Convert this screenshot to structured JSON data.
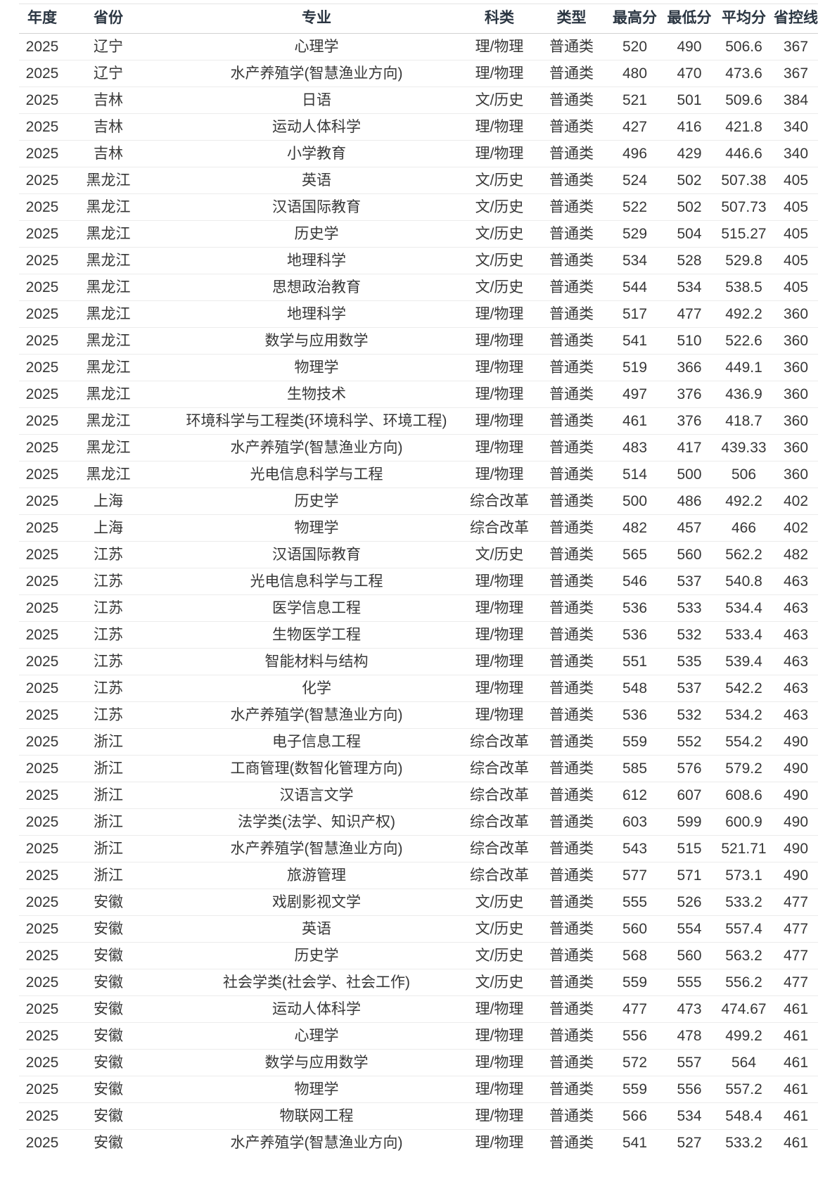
{
  "table": {
    "columns": [
      {
        "key": "year",
        "label": "年度"
      },
      {
        "key": "province",
        "label": "省份"
      },
      {
        "key": "major",
        "label": "专业"
      },
      {
        "key": "category",
        "label": "科类"
      },
      {
        "key": "type",
        "label": "类型"
      },
      {
        "key": "max",
        "label": "最高分"
      },
      {
        "key": "min",
        "label": "最低分"
      },
      {
        "key": "avg",
        "label": "平均分"
      },
      {
        "key": "line",
        "label": "省控线"
      }
    ],
    "rows": [
      [
        "2025",
        "辽宁",
        "心理学",
        "理/物理",
        "普通类",
        "520",
        "490",
        "506.6",
        "367"
      ],
      [
        "2025",
        "辽宁",
        "水产养殖学(智慧渔业方向)",
        "理/物理",
        "普通类",
        "480",
        "470",
        "473.6",
        "367"
      ],
      [
        "2025",
        "吉林",
        "日语",
        "文/历史",
        "普通类",
        "521",
        "501",
        "509.6",
        "384"
      ],
      [
        "2025",
        "吉林",
        "运动人体科学",
        "理/物理",
        "普通类",
        "427",
        "416",
        "421.8",
        "340"
      ],
      [
        "2025",
        "吉林",
        "小学教育",
        "理/物理",
        "普通类",
        "496",
        "429",
        "446.6",
        "340"
      ],
      [
        "2025",
        "黑龙江",
        "英语",
        "文/历史",
        "普通类",
        "524",
        "502",
        "507.38",
        "405"
      ],
      [
        "2025",
        "黑龙江",
        "汉语国际教育",
        "文/历史",
        "普通类",
        "522",
        "502",
        "507.73",
        "405"
      ],
      [
        "2025",
        "黑龙江",
        "历史学",
        "文/历史",
        "普通类",
        "529",
        "504",
        "515.27",
        "405"
      ],
      [
        "2025",
        "黑龙江",
        "地理科学",
        "文/历史",
        "普通类",
        "534",
        "528",
        "529.8",
        "405"
      ],
      [
        "2025",
        "黑龙江",
        "思想政治教育",
        "文/历史",
        "普通类",
        "544",
        "534",
        "538.5",
        "405"
      ],
      [
        "2025",
        "黑龙江",
        "地理科学",
        "理/物理",
        "普通类",
        "517",
        "477",
        "492.2",
        "360"
      ],
      [
        "2025",
        "黑龙江",
        "数学与应用数学",
        "理/物理",
        "普通类",
        "541",
        "510",
        "522.6",
        "360"
      ],
      [
        "2025",
        "黑龙江",
        "物理学",
        "理/物理",
        "普通类",
        "519",
        "366",
        "449.1",
        "360"
      ],
      [
        "2025",
        "黑龙江",
        "生物技术",
        "理/物理",
        "普通类",
        "497",
        "376",
        "436.9",
        "360"
      ],
      [
        "2025",
        "黑龙江",
        "环境科学与工程类(环境科学、环境工程)",
        "理/物理",
        "普通类",
        "461",
        "376",
        "418.7",
        "360"
      ],
      [
        "2025",
        "黑龙江",
        "水产养殖学(智慧渔业方向)",
        "理/物理",
        "普通类",
        "483",
        "417",
        "439.33",
        "360"
      ],
      [
        "2025",
        "黑龙江",
        "光电信息科学与工程",
        "理/物理",
        "普通类",
        "514",
        "500",
        "506",
        "360"
      ],
      [
        "2025",
        "上海",
        "历史学",
        "综合改革",
        "普通类",
        "500",
        "486",
        "492.2",
        "402"
      ],
      [
        "2025",
        "上海",
        "物理学",
        "综合改革",
        "普通类",
        "482",
        "457",
        "466",
        "402"
      ],
      [
        "2025",
        "江苏",
        "汉语国际教育",
        "文/历史",
        "普通类",
        "565",
        "560",
        "562.2",
        "482"
      ],
      [
        "2025",
        "江苏",
        "光电信息科学与工程",
        "理/物理",
        "普通类",
        "546",
        "537",
        "540.8",
        "463"
      ],
      [
        "2025",
        "江苏",
        "医学信息工程",
        "理/物理",
        "普通类",
        "536",
        "533",
        "534.4",
        "463"
      ],
      [
        "2025",
        "江苏",
        "生物医学工程",
        "理/物理",
        "普通类",
        "536",
        "532",
        "533.4",
        "463"
      ],
      [
        "2025",
        "江苏",
        "智能材料与结构",
        "理/物理",
        "普通类",
        "551",
        "535",
        "539.4",
        "463"
      ],
      [
        "2025",
        "江苏",
        "化学",
        "理/物理",
        "普通类",
        "548",
        "537",
        "542.2",
        "463"
      ],
      [
        "2025",
        "江苏",
        "水产养殖学(智慧渔业方向)",
        "理/物理",
        "普通类",
        "536",
        "532",
        "534.2",
        "463"
      ],
      [
        "2025",
        "浙江",
        "电子信息工程",
        "综合改革",
        "普通类",
        "559",
        "552",
        "554.2",
        "490"
      ],
      [
        "2025",
        "浙江",
        "工商管理(数智化管理方向)",
        "综合改革",
        "普通类",
        "585",
        "576",
        "579.2",
        "490"
      ],
      [
        "2025",
        "浙江",
        "汉语言文学",
        "综合改革",
        "普通类",
        "612",
        "607",
        "608.6",
        "490"
      ],
      [
        "2025",
        "浙江",
        "法学类(法学、知识产权)",
        "综合改革",
        "普通类",
        "603",
        "599",
        "600.9",
        "490"
      ],
      [
        "2025",
        "浙江",
        "水产养殖学(智慧渔业方向)",
        "综合改革",
        "普通类",
        "543",
        "515",
        "521.71",
        "490"
      ],
      [
        "2025",
        "浙江",
        "旅游管理",
        "综合改革",
        "普通类",
        "577",
        "571",
        "573.1",
        "490"
      ],
      [
        "2025",
        "安徽",
        "戏剧影视文学",
        "文/历史",
        "普通类",
        "555",
        "526",
        "533.2",
        "477"
      ],
      [
        "2025",
        "安徽",
        "英语",
        "文/历史",
        "普通类",
        "560",
        "554",
        "557.4",
        "477"
      ],
      [
        "2025",
        "安徽",
        "历史学",
        "文/历史",
        "普通类",
        "568",
        "560",
        "563.2",
        "477"
      ],
      [
        "2025",
        "安徽",
        "社会学类(社会学、社会工作)",
        "文/历史",
        "普通类",
        "559",
        "555",
        "556.2",
        "477"
      ],
      [
        "2025",
        "安徽",
        "运动人体科学",
        "理/物理",
        "普通类",
        "477",
        "473",
        "474.67",
        "461"
      ],
      [
        "2025",
        "安徽",
        "心理学",
        "理/物理",
        "普通类",
        "556",
        "478",
        "499.2",
        "461"
      ],
      [
        "2025",
        "安徽",
        "数学与应用数学",
        "理/物理",
        "普通类",
        "572",
        "557",
        "564",
        "461"
      ],
      [
        "2025",
        "安徽",
        "物理学",
        "理/物理",
        "普通类",
        "559",
        "556",
        "557.2",
        "461"
      ],
      [
        "2025",
        "安徽",
        "物联网工程",
        "理/物理",
        "普通类",
        "566",
        "534",
        "548.4",
        "461"
      ],
      [
        "2025",
        "安徽",
        "水产养殖学(智慧渔业方向)",
        "理/物理",
        "普通类",
        "541",
        "527",
        "533.2",
        "461"
      ]
    ]
  }
}
